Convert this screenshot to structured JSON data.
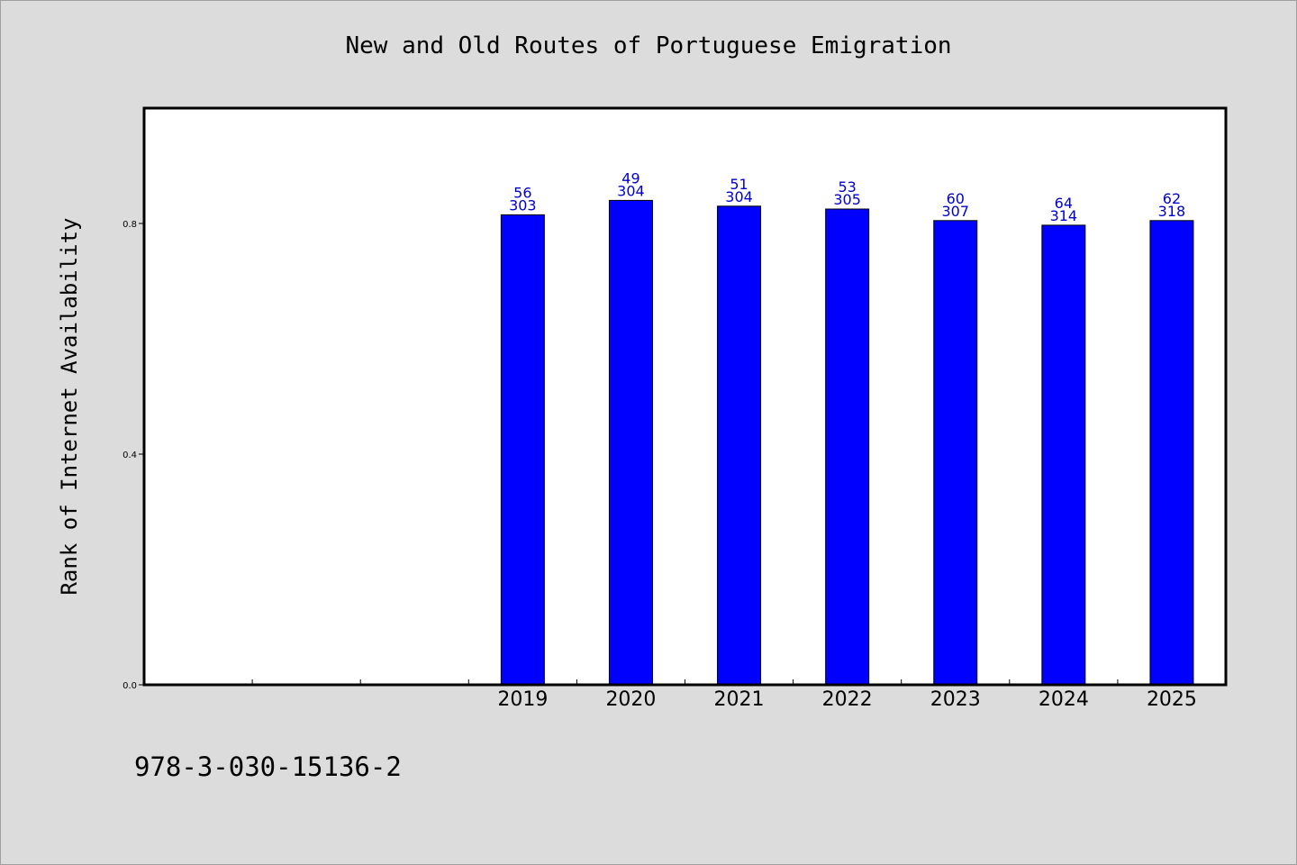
{
  "colors": {
    "background": "#dcdcdc",
    "plot_background": "#ffffff",
    "bar_fill": "#0000ff",
    "label_color": "#0000cc"
  },
  "footer": {
    "code": "978-3-030-15136-2"
  },
  "chart_data": {
    "type": "bar",
    "title": "New and Old Routes of Portuguese Emigration",
    "xlabel": "",
    "ylabel": "Rank of Internet Availability",
    "categories": [
      "2019",
      "2020",
      "2021",
      "2022",
      "2023",
      "2024",
      "2025"
    ],
    "values": [
      0.815,
      0.84,
      0.83,
      0.825,
      0.805,
      0.797,
      0.805
    ],
    "bar_labels_top": [
      "56",
      "49",
      "51",
      "53",
      "60",
      "64",
      "62"
    ],
    "bar_labels_bottom": [
      "303",
      "304",
      "304",
      "305",
      "307",
      "314",
      "318"
    ],
    "ylim": [
      0,
      1.0
    ],
    "yticks": [
      "0.0",
      "0.4",
      "0.8"
    ],
    "ytick_values": [
      0.0,
      0.4,
      0.8
    ],
    "x_slots": 10,
    "first_bar_slot": 3,
    "grid": false,
    "legend": "none"
  }
}
